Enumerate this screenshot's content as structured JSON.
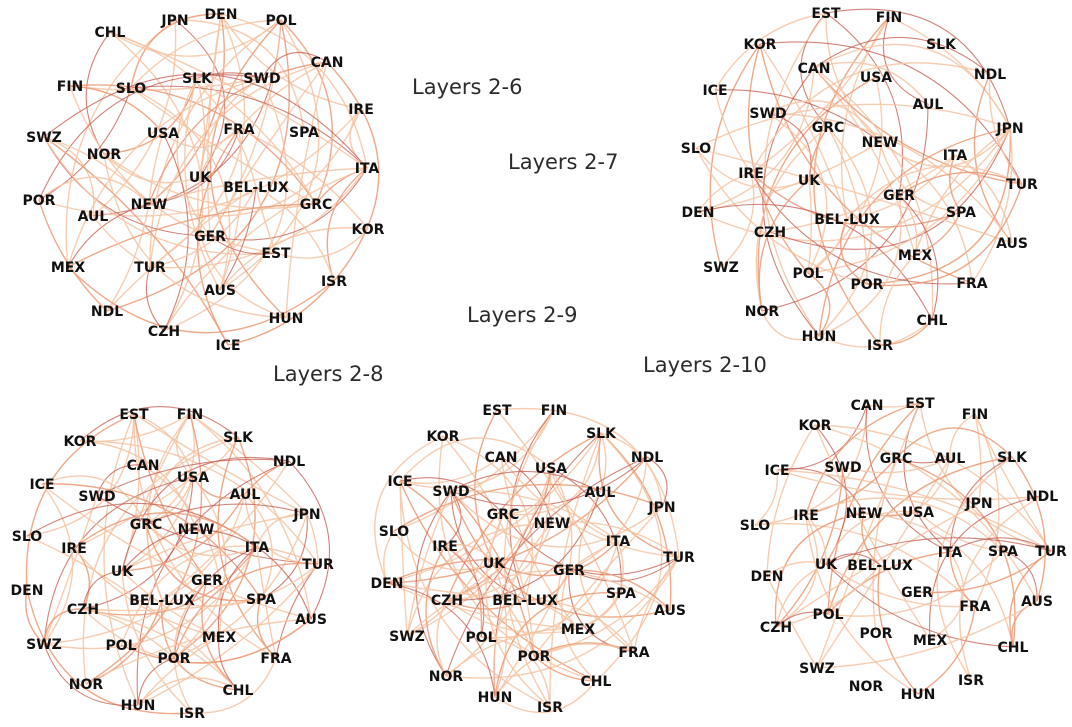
{
  "colors": {
    "edge_light": "#f6c4a4",
    "edge_mid": "#ec9a75",
    "edge_dark": "#c45a4e",
    "label": "#111111"
  },
  "titles": [
    "Layers 2-6",
    "Layers 2-7",
    "Layers 2-9",
    "Layers 2-8",
    "Layers 2-10"
  ],
  "networks": [
    {
      "name": "Layers 2-6",
      "nodes": [
        "JPN",
        "DEN",
        "POL",
        "CHL",
        "CAN",
        "FIN",
        "SLO",
        "SLK",
        "SWD",
        "IRE",
        "SWZ",
        "USA",
        "FRA",
        "SPA",
        "NOR",
        "ITA",
        "UK",
        "BEL-LUX",
        "POR",
        "NEW",
        "GRC",
        "AUL",
        "KOR",
        "GER",
        "EST",
        "MEX",
        "TUR",
        "ISR",
        "NDL",
        "AUS",
        "HUN",
        "CZH",
        "ICE"
      ]
    },
    {
      "name": "Layers 2-7",
      "nodes": [
        "EST",
        "FIN",
        "KOR",
        "SLK",
        "CAN",
        "USA",
        "NDL",
        "ICE",
        "AUL",
        "SWD",
        "GRC",
        "JPN",
        "NEW",
        "SLO",
        "ITA",
        "IRE",
        "UK",
        "GER",
        "TUR",
        "DEN",
        "BEL-LUX",
        "SPA",
        "CZH",
        "AUS",
        "MEX",
        "SWZ",
        "POL",
        "POR",
        "FRA",
        "NOR",
        "CHL",
        "HUN",
        "ISR"
      ]
    },
    {
      "name": "Layers 2-8",
      "nodes": [
        "EST",
        "FIN",
        "KOR",
        "SLK",
        "CAN",
        "NDL",
        "USA",
        "ICE",
        "SWD",
        "AUL",
        "JPN",
        "GRC",
        "NEW",
        "SLO",
        "IRE",
        "ITA",
        "TUR",
        "UK",
        "GER",
        "DEN",
        "BEL-LUX",
        "SPA",
        "CZH",
        "AUS",
        "MEX",
        "SWZ",
        "POL",
        "POR",
        "FRA",
        "NOR",
        "CHL",
        "HUN",
        "ISR"
      ]
    },
    {
      "name": "Layers 2-9",
      "nodes": [
        "EST",
        "FIN",
        "KOR",
        "SLK",
        "CAN",
        "NDL",
        "USA",
        "ICE",
        "SWD",
        "AUL",
        "JPN",
        "GRC",
        "NEW",
        "SLO",
        "ITA",
        "IRE",
        "TUR",
        "UK",
        "GER",
        "DEN",
        "BEL-LUX",
        "SPA",
        "CZH",
        "AUS",
        "MEX",
        "SWZ",
        "POL",
        "FRA",
        "POR",
        "NOR",
        "CHL",
        "HUN",
        "ISR"
      ]
    },
    {
      "name": "Layers 2-10",
      "nodes": [
        "CAN",
        "EST",
        "FIN",
        "KOR",
        "ICE",
        "SWD",
        "GRC",
        "AUL",
        "SLK",
        "NDL",
        "JPN",
        "SLO",
        "IRE",
        "NEW",
        "USA",
        "ITA",
        "SPA",
        "TUR",
        "UK",
        "BEL-LUX",
        "DEN",
        "GER",
        "FRA",
        "AUS",
        "CZH",
        "POL",
        "MEX",
        "POR",
        "CHL",
        "SWZ",
        "NOR",
        "HUN",
        "ISR"
      ]
    }
  ]
}
